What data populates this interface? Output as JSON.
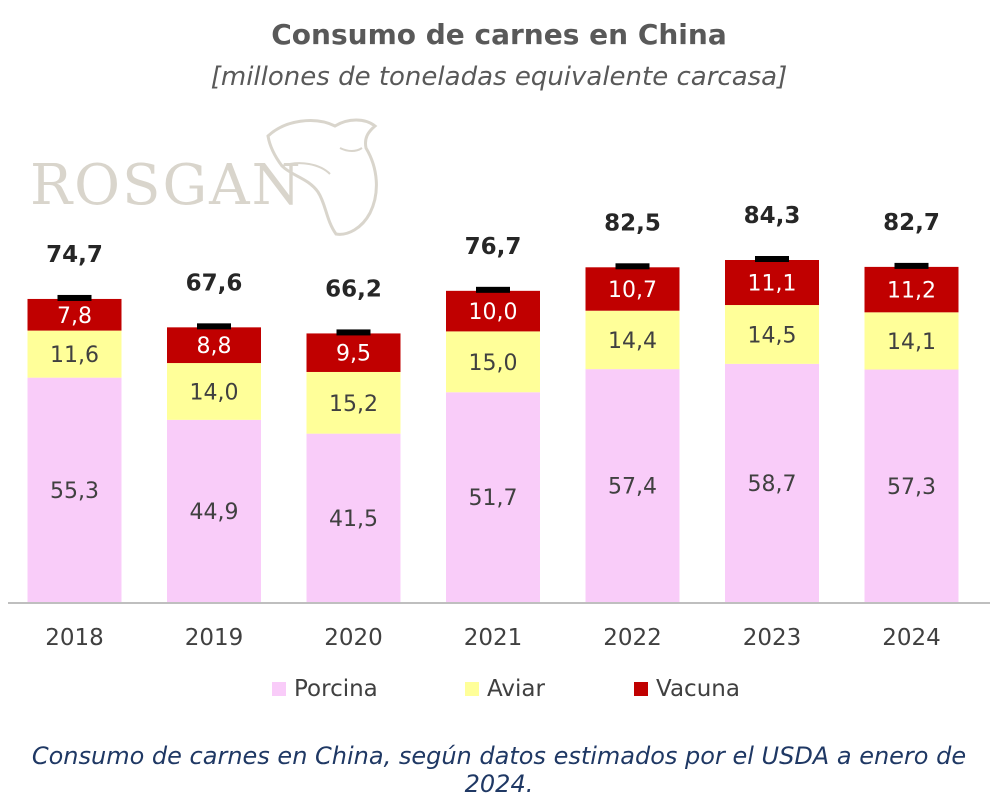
{
  "title": "Consumo de carnes en China",
  "subtitle": "[millones de toneladas equivalente carcasa]",
  "watermark": "ROSGAN",
  "caption": "Consumo de carnes en China, según datos estimados por el USDA a enero de 2024.",
  "colors": {
    "porcina": "#f9ccf9",
    "aviar": "#ffff99",
    "vacuna": "#c00000",
    "axis": "#bfbfbf"
  },
  "legend": [
    "Porcina",
    "Aviar",
    "Vacuna"
  ],
  "chart_data": {
    "type": "bar",
    "stacked": true,
    "categories": [
      "2018",
      "2019",
      "2020",
      "2021",
      "2022",
      "2023",
      "2024"
    ],
    "series": [
      {
        "name": "Porcina",
        "values": [
          55.3,
          44.9,
          41.5,
          51.7,
          57.4,
          58.7,
          57.3
        ],
        "labels": [
          "55,3",
          "44,9",
          "41,5",
          "51,7",
          "57,4",
          "58,7",
          "57,3"
        ]
      },
      {
        "name": "Aviar",
        "values": [
          11.6,
          14.0,
          15.2,
          15.0,
          14.4,
          14.5,
          14.1
        ],
        "labels": [
          "11,6",
          "14,0",
          "15,2",
          "15,0",
          "14,4",
          "14,5",
          "14,1"
        ]
      },
      {
        "name": "Vacuna",
        "values": [
          7.8,
          8.8,
          9.5,
          10.0,
          10.7,
          11.1,
          11.2
        ],
        "labels": [
          "7,8",
          "8,8",
          "9,5",
          "10,0",
          "10,7",
          "11,1",
          "11,2"
        ]
      }
    ],
    "totals": [
      74.7,
      67.6,
      66.2,
      76.7,
      82.5,
      84.3,
      82.7
    ],
    "total_labels": [
      "74,7",
      "67,6",
      "66,2",
      "76,7",
      "82,5",
      "84,3",
      "82,7"
    ],
    "ylim": [
      0,
      84.3
    ],
    "grid": false,
    "legend_position": "bottom"
  }
}
